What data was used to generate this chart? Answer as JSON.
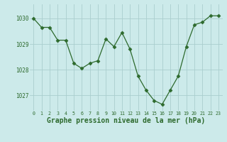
{
  "x": [
    0,
    1,
    2,
    3,
    4,
    5,
    6,
    7,
    8,
    9,
    10,
    11,
    12,
    13,
    14,
    15,
    16,
    17,
    18,
    19,
    20,
    21,
    22,
    23
  ],
  "y": [
    1030.0,
    1029.65,
    1029.65,
    1029.15,
    1029.15,
    1028.25,
    1028.05,
    1028.25,
    1028.35,
    1029.2,
    1028.9,
    1029.45,
    1028.8,
    1027.75,
    1027.2,
    1026.8,
    1026.65,
    1027.2,
    1027.75,
    1028.9,
    1029.75,
    1029.85,
    1030.1,
    1030.1
  ],
  "line_color": "#2d6a2d",
  "marker": "D",
  "marker_size": 2.5,
  "bg_color": "#cceaea",
  "grid_color": "#aacece",
  "xlabel": "Graphe pression niveau de la mer (hPa)",
  "xlabel_fontsize": 7.0,
  "tick_label_color": "#2d6a2d",
  "ylim": [
    1026.4,
    1030.55
  ],
  "yticks": [
    1027,
    1028,
    1029,
    1030
  ],
  "xlim": [
    -0.5,
    23.5
  ],
  "xticks": [
    0,
    1,
    2,
    3,
    4,
    5,
    6,
    7,
    8,
    9,
    10,
    11,
    12,
    13,
    14,
    15,
    16,
    17,
    18,
    19,
    20,
    21,
    22,
    23
  ]
}
